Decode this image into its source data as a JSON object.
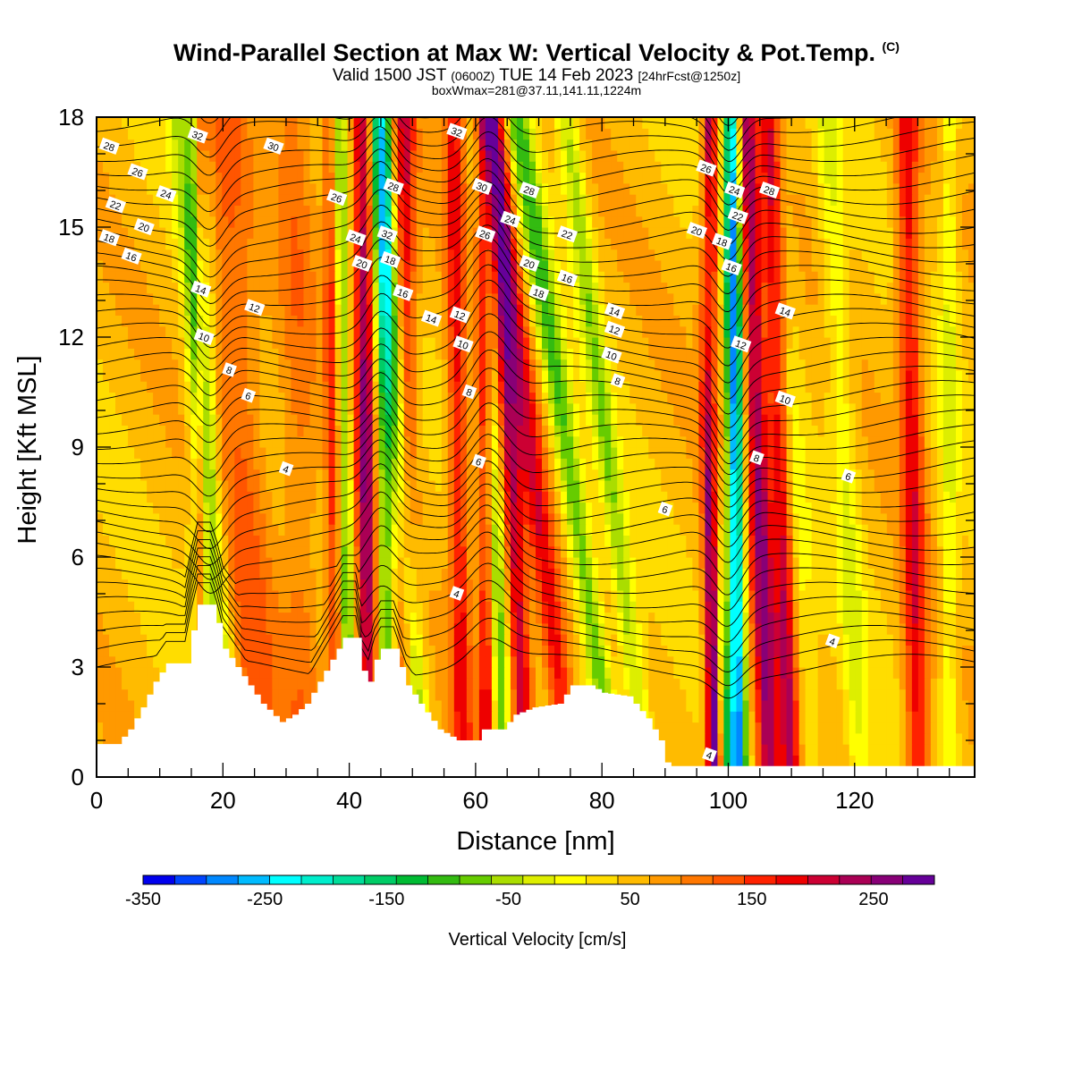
{
  "header": {
    "title": "Wind-Parallel Section at Max W: Vertical Velocity & Pot.Temp.",
    "copyright": "(C)",
    "valid_prefix": "Valid 1500 JST",
    "valid_utc": "(0600Z)",
    "valid_suffix": "TUE 14 Feb 2023",
    "forecast": "[24hrFcst@1250z]",
    "box_info": "boxWmax=281@37.11,141.11,1224m"
  },
  "colors": {
    "scale": [
      "#0000ee",
      "#0044ff",
      "#0088ff",
      "#00bbff",
      "#00ffff",
      "#00eecc",
      "#00dd99",
      "#00cc66",
      "#00bb33",
      "#33bb11",
      "#66cc00",
      "#aadd00",
      "#ddee00",
      "#ffff00",
      "#ffdd00",
      "#ffbb00",
      "#ff9900",
      "#ff7700",
      "#ff5500",
      "#ff2200",
      "#ee0000",
      "#cc0033",
      "#aa0055",
      "#880077",
      "#660099"
    ]
  },
  "chart_data": {
    "type": "heatmap",
    "xlabel": "Distance [nm]",
    "ylabel": "Height [Kft MSL]",
    "xlim": [
      0,
      139
    ],
    "ylim": [
      0,
      18
    ],
    "xticks": [
      "0",
      "20",
      "40",
      "60",
      "80",
      "100",
      "120"
    ],
    "yticks": [
      "0",
      "3",
      "6",
      "9",
      "12",
      "15",
      "18"
    ],
    "colorbar": {
      "label": "Vertical Velocity [cm/s]",
      "min": -350,
      "max": 300,
      "step": 25,
      "tick_labels": [
        "-350",
        "-250",
        "-150",
        "-50",
        "50",
        "150",
        "250"
      ]
    },
    "velocity_bands": [
      {
        "x": 17,
        "slope": 0.05,
        "width": 1.6,
        "value": -150
      },
      {
        "x": 16.5,
        "slope": 0.0,
        "width": 1.0,
        "value": 170
      },
      {
        "x": 22,
        "slope": 0.5,
        "width": 1.8,
        "value": -90
      },
      {
        "x": 26,
        "slope": 0.35,
        "width": 4.0,
        "value": 70
      },
      {
        "x": 33,
        "slope": 0.1,
        "width": 3.0,
        "value": 50
      },
      {
        "x": 38,
        "slope": 0.05,
        "width": 1.2,
        "value": 120
      },
      {
        "x": 40,
        "slope": 0.1,
        "width": 1.3,
        "value": -130
      },
      {
        "x": 43,
        "slope": 0.05,
        "width": 1.6,
        "value": 190
      },
      {
        "x": 46,
        "slope": 0.05,
        "width": 1.4,
        "value": -140
      },
      {
        "x": 49,
        "slope": 0.02,
        "width": 1.8,
        "value": 140
      },
      {
        "x": 51,
        "slope": 0.35,
        "width": 1.8,
        "value": -170
      },
      {
        "x": 58,
        "slope": 0.08,
        "width": 1.6,
        "value": 120
      },
      {
        "x": 62,
        "slope": 0.05,
        "width": 1.3,
        "value": 180
      },
      {
        "x": 64,
        "slope": 0.15,
        "width": 1.8,
        "value": -140
      },
      {
        "x": 68,
        "slope": 0.3,
        "width": 1.8,
        "value": 170
      },
      {
        "x": 75,
        "slope": 0.7,
        "width": 2.0,
        "value": 130
      },
      {
        "x": 82,
        "slope": 0.85,
        "width": 2.0,
        "value": -140
      },
      {
        "x": 87,
        "slope": 0.7,
        "width": 1.8,
        "value": -100
      },
      {
        "x": 98,
        "slope": 0.08,
        "width": 1.3,
        "value": 280
      },
      {
        "x": 101.5,
        "slope": 0.05,
        "width": 1.3,
        "value": -320
      },
      {
        "x": 99.5,
        "slope": 0.2,
        "width": 1.1,
        "value": -160
      },
      {
        "x": 106.5,
        "slope": 0.2,
        "width": 1.8,
        "value": 190
      },
      {
        "x": 110,
        "slope": 0.2,
        "width": 1.6,
        "value": 170
      },
      {
        "x": 113,
        "slope": 0.4,
        "width": 2.5,
        "value": -50
      },
      {
        "x": 121,
        "slope": 0.3,
        "width": 2.0,
        "value": -60
      },
      {
        "x": 130,
        "slope": 0.1,
        "width": 1.8,
        "value": 130
      },
      {
        "x": 135,
        "slope": 0.0,
        "width": 1.5,
        "value": -60
      }
    ],
    "terrain": [
      [
        0,
        0.9
      ],
      [
        3,
        0.9
      ],
      [
        5,
        1.3
      ],
      [
        7,
        1.9
      ],
      [
        9,
        2.6
      ],
      [
        11,
        3.1
      ],
      [
        14,
        3.1
      ],
      [
        15,
        4.0
      ],
      [
        16,
        4.7
      ],
      [
        18,
        4.7
      ],
      [
        19,
        4.2
      ],
      [
        20,
        3.5
      ],
      [
        22,
        3.0
      ],
      [
        24,
        2.5
      ],
      [
        26,
        2.0
      ],
      [
        29,
        1.5
      ],
      [
        31,
        1.7
      ],
      [
        33,
        2.0
      ],
      [
        35,
        2.6
      ],
      [
        37,
        3.2
      ],
      [
        39,
        3.8
      ],
      [
        41,
        3.8
      ],
      [
        42,
        2.9
      ],
      [
        43,
        2.6
      ],
      [
        44,
        3.2
      ],
      [
        45,
        3.5
      ],
      [
        47,
        3.5
      ],
      [
        49,
        2.5
      ],
      [
        51,
        2.0
      ],
      [
        54,
        1.3
      ],
      [
        57,
        1.0
      ],
      [
        60,
        1.0
      ],
      [
        61,
        1.3
      ],
      [
        64,
        1.3
      ],
      [
        66,
        1.7
      ],
      [
        69,
        1.9
      ],
      [
        73,
        2.0
      ],
      [
        75,
        2.5
      ],
      [
        78,
        2.5
      ],
      [
        80,
        2.3
      ],
      [
        84,
        2.2
      ],
      [
        87,
        1.6
      ],
      [
        89,
        1.0
      ],
      [
        90,
        0.4
      ],
      [
        91,
        0.3
      ],
      [
        139,
        0.3
      ]
    ],
    "theta_contour_levels": [
      "4",
      "6",
      "8",
      "10",
      "12",
      "14",
      "16",
      "18",
      "20",
      "22",
      "24",
      "26",
      "28",
      "30",
      "32"
    ],
    "contour_labels": [
      {
        "x": 2,
        "y": 17.2,
        "text": "28"
      },
      {
        "x": 6.5,
        "y": 16.5,
        "text": "26"
      },
      {
        "x": 11,
        "y": 15.9,
        "text": "24"
      },
      {
        "x": 3,
        "y": 15.6,
        "text": "22"
      },
      {
        "x": 7.5,
        "y": 15.0,
        "text": "20"
      },
      {
        "x": 2,
        "y": 14.7,
        "text": "18"
      },
      {
        "x": 5.5,
        "y": 14.2,
        "text": "16"
      },
      {
        "x": 16,
        "y": 17.5,
        "text": "32"
      },
      {
        "x": 28,
        "y": 17.2,
        "text": "30"
      },
      {
        "x": 16.5,
        "y": 13.3,
        "text": "14"
      },
      {
        "x": 25,
        "y": 12.8,
        "text": "12"
      },
      {
        "x": 17,
        "y": 12.0,
        "text": "10"
      },
      {
        "x": 21,
        "y": 11.1,
        "text": "8"
      },
      {
        "x": 24,
        "y": 10.4,
        "text": "6"
      },
      {
        "x": 30,
        "y": 8.4,
        "text": "4"
      },
      {
        "x": 38,
        "y": 15.8,
        "text": "26"
      },
      {
        "x": 41,
        "y": 14.7,
        "text": "24"
      },
      {
        "x": 42,
        "y": 14.0,
        "text": "20"
      },
      {
        "x": 47,
        "y": 16.1,
        "text": "28"
      },
      {
        "x": 46,
        "y": 14.8,
        "text": "32"
      },
      {
        "x": 46.5,
        "y": 14.1,
        "text": "18"
      },
      {
        "x": 48.5,
        "y": 13.2,
        "text": "16"
      },
      {
        "x": 53,
        "y": 12.5,
        "text": "14"
      },
      {
        "x": 57,
        "y": 17.6,
        "text": "32"
      },
      {
        "x": 57.5,
        "y": 12.6,
        "text": "12"
      },
      {
        "x": 58,
        "y": 11.8,
        "text": "10"
      },
      {
        "x": 59,
        "y": 10.5,
        "text": "8"
      },
      {
        "x": 60.5,
        "y": 8.6,
        "text": "6"
      },
      {
        "x": 57,
        "y": 5.0,
        "text": "4"
      },
      {
        "x": 61,
        "y": 16.1,
        "text": "30"
      },
      {
        "x": 68.5,
        "y": 16.0,
        "text": "28"
      },
      {
        "x": 65.5,
        "y": 15.2,
        "text": "24"
      },
      {
        "x": 61.5,
        "y": 14.8,
        "text": "26"
      },
      {
        "x": 74.5,
        "y": 14.8,
        "text": "22"
      },
      {
        "x": 68.5,
        "y": 14.0,
        "text": "20"
      },
      {
        "x": 70,
        "y": 13.2,
        "text": "18"
      },
      {
        "x": 74.5,
        "y": 13.6,
        "text": "16"
      },
      {
        "x": 82,
        "y": 12.7,
        "text": "14"
      },
      {
        "x": 82,
        "y": 12.2,
        "text": "12"
      },
      {
        "x": 81.5,
        "y": 11.5,
        "text": "10"
      },
      {
        "x": 82.5,
        "y": 10.8,
        "text": "8"
      },
      {
        "x": 90,
        "y": 7.3,
        "text": "6"
      },
      {
        "x": 96.5,
        "y": 16.6,
        "text": "26"
      },
      {
        "x": 101,
        "y": 16.0,
        "text": "24"
      },
      {
        "x": 106.5,
        "y": 16.0,
        "text": "28"
      },
      {
        "x": 101.5,
        "y": 15.3,
        "text": "22"
      },
      {
        "x": 95,
        "y": 14.9,
        "text": "20"
      },
      {
        "x": 99,
        "y": 14.6,
        "text": "18"
      },
      {
        "x": 100.5,
        "y": 13.9,
        "text": "16"
      },
      {
        "x": 109,
        "y": 12.7,
        "text": "14"
      },
      {
        "x": 102,
        "y": 11.8,
        "text": "12"
      },
      {
        "x": 109,
        "y": 10.3,
        "text": "10"
      },
      {
        "x": 104.5,
        "y": 8.7,
        "text": "8"
      },
      {
        "x": 119,
        "y": 8.2,
        "text": "6"
      },
      {
        "x": 116.5,
        "y": 3.7,
        "text": "4"
      },
      {
        "x": 97,
        "y": 0.6,
        "text": "4"
      }
    ]
  }
}
